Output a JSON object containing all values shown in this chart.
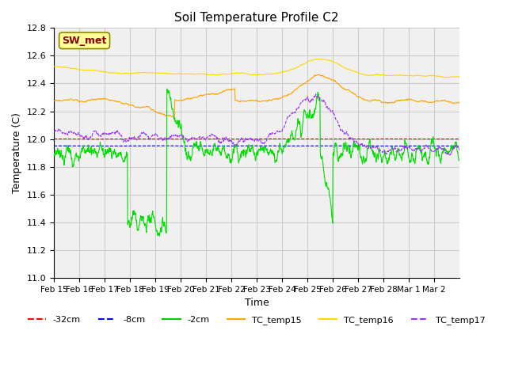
{
  "title": "Soil Temperature Profile C2",
  "xlabel": "Time",
  "ylabel": "Temperature (C)",
  "ylim": [
    11.0,
    12.8
  ],
  "yticks": [
    11.0,
    11.2,
    11.4,
    11.6,
    11.8,
    12.0,
    12.2,
    12.4,
    12.6,
    12.8
  ],
  "xtick_labels": [
    "Feb 15",
    "Feb 16",
    "Feb 17",
    "Feb 18",
    "Feb 19",
    "Feb 20",
    "Feb 21",
    "Feb 22",
    "Feb 23",
    "Feb 24",
    "Feb 25",
    "Feb 26",
    "Feb 27",
    "Feb 28",
    "Mar 1",
    "Mar 2"
  ],
  "annotation_text": "SW_met",
  "annotation_color": "#8B0000",
  "annotation_bg": "#FFFF99",
  "legend_entries": [
    {
      "label": "-32cm",
      "color": "#FF0000",
      "ls": "--"
    },
    {
      "label": "-8cm",
      "color": "#0000FF",
      "ls": "--"
    },
    {
      "label": "-2cm",
      "color": "#00CC00",
      "ls": "-"
    },
    {
      "label": "TC_temp15",
      "color": "#FFA500",
      "ls": "-"
    },
    {
      "label": "TC_temp16",
      "color": "#FFD700",
      "ls": "-"
    },
    {
      "label": "TC_temp17",
      "color": "#9B30FF",
      "ls": "--"
    }
  ],
  "grid_color": "#CCCCCC",
  "plot_bg": "#F0F0F0",
  "n_points": 1344,
  "seed": 42
}
